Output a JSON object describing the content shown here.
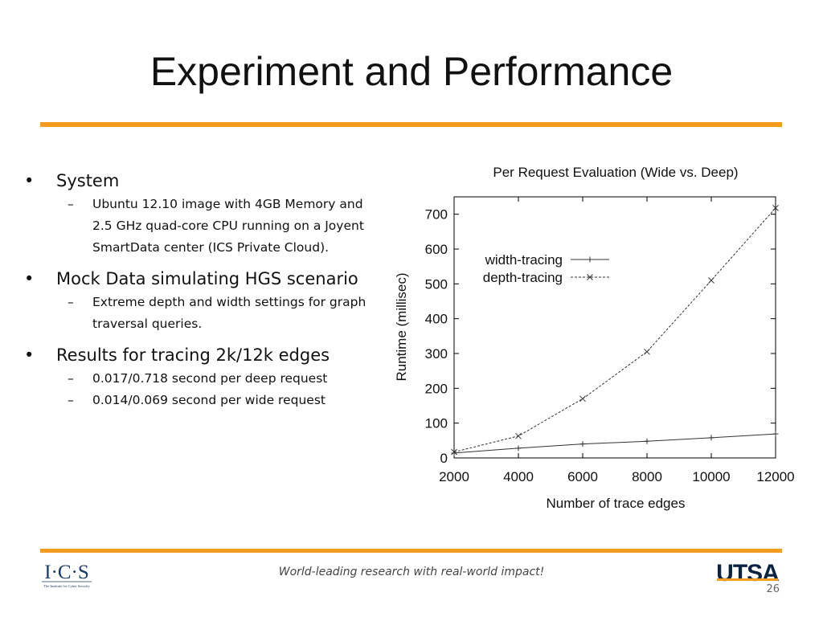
{
  "slide": {
    "title": "Experiment and Performance",
    "accent_color": "#f39c1f",
    "page_number": "26",
    "footer_tagline": "World-leading research with real-world impact!",
    "logo_left": "I·C·S",
    "logo_left_sub": "The Institute for Cyber Security",
    "logo_right": "UTSA"
  },
  "bullets": [
    {
      "text": "System",
      "sub": [
        "Ubuntu 12.10 image with 4GB Memory and 2.5 GHz quad-core CPU running on a Joyent SmartData center (ICS Private Cloud)."
      ]
    },
    {
      "text": "Mock Data simulating HGS scenario",
      "sub": [
        "Extreme depth and width settings for graph traversal queries."
      ]
    },
    {
      "text": "Results for tracing 2k/12k edges",
      "sub": [
        "0.017/0.718 second per deep request",
        "0.014/0.069 second per wide request"
      ]
    }
  ],
  "chart_data": {
    "type": "line",
    "title": "Per Request Evaluation (Wide vs. Deep)",
    "xlabel": "Number of trace edges",
    "ylabel": "Runtime (millisec)",
    "x": [
      2000,
      4000,
      6000,
      8000,
      10000,
      12000
    ],
    "xlim": [
      2000,
      12000
    ],
    "ylim": [
      0,
      750
    ],
    "xticks": [
      2000,
      4000,
      6000,
      8000,
      10000,
      12000
    ],
    "yticks": [
      0,
      100,
      200,
      300,
      400,
      500,
      600,
      700
    ],
    "grid": false,
    "legend_position": "upper-left",
    "series": [
      {
        "name": "width-tracing",
        "marker": "+",
        "line": "solid",
        "values": [
          14,
          28,
          40,
          48,
          58,
          69
        ]
      },
      {
        "name": "depth-tracing",
        "marker": "x",
        "line": "dashed",
        "values": [
          17,
          63,
          170,
          305,
          510,
          718
        ]
      }
    ]
  }
}
